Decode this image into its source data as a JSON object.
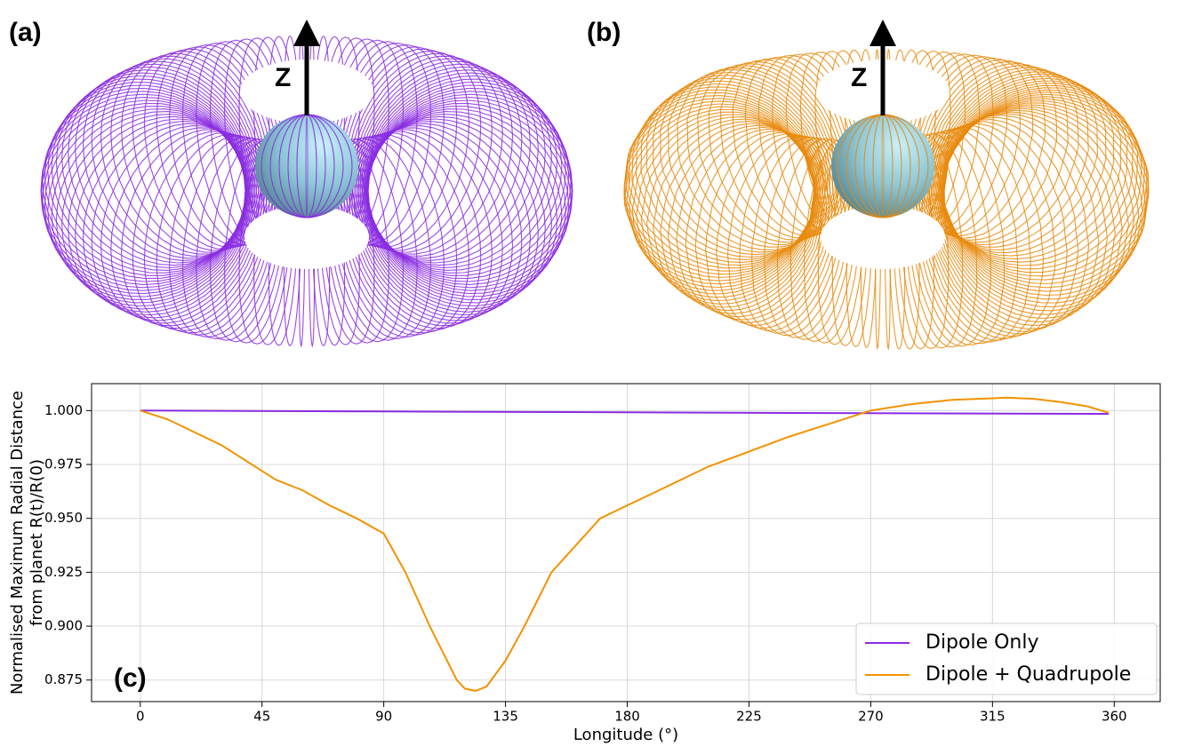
{
  "panels": [
    {
      "label": "(a)",
      "axis": "Z"
    },
    {
      "label": "(b)",
      "axis": "Z"
    }
  ],
  "chart_data": {
    "type": "line",
    "panel_label": "(c)",
    "xlabel": "Longitude (°)",
    "ylabel": [
      "Normalised Maximum Radial Distance",
      "from planet R(t)/R(0)"
    ],
    "xlim": [
      -18,
      377
    ],
    "ylim": [
      0.865,
      1.0125
    ],
    "xticks": [
      0,
      45,
      90,
      135,
      180,
      225,
      270,
      315,
      360
    ],
    "yticks": [
      {
        "value": 0.875,
        "label": "0.875"
      },
      {
        "value": 0.9,
        "label": "0.900"
      },
      {
        "value": 0.925,
        "label": "0.925"
      },
      {
        "value": 0.95,
        "label": "0.950"
      },
      {
        "value": 0.975,
        "label": "0.975"
      },
      {
        "value": 1.0,
        "label": "1.000"
      }
    ],
    "grid": true,
    "legend": "lower right",
    "series": [
      {
        "name": "Dipole Only",
        "color": "#8a2be2",
        "x": [
          0,
          90,
          180,
          270,
          358
        ],
        "values": [
          1.0,
          0.9996,
          0.9992,
          0.9988,
          0.9985
        ]
      },
      {
        "name": "Dipole + Quadrupole",
        "color": "#f39200",
        "x": [
          0,
          10,
          20,
          30,
          40,
          45,
          50,
          60,
          70,
          80,
          90,
          98,
          107,
          117,
          120,
          124,
          128,
          135,
          142,
          152,
          170,
          180,
          190,
          200,
          210,
          225,
          240,
          255,
          270,
          285,
          300,
          315,
          320,
          330,
          340,
          350,
          358
        ],
        "values": [
          1.0,
          0.996,
          0.99,
          0.984,
          0.976,
          0.972,
          0.968,
          0.963,
          0.956,
          0.95,
          0.943,
          0.925,
          0.9,
          0.875,
          0.871,
          0.87,
          0.872,
          0.884,
          0.9,
          0.925,
          0.95,
          0.956,
          0.962,
          0.968,
          0.974,
          0.981,
          0.988,
          0.994,
          1.0,
          1.003,
          1.005,
          1.0057,
          1.006,
          1.0055,
          1.004,
          1.002,
          0.999
        ]
      }
    ]
  }
}
